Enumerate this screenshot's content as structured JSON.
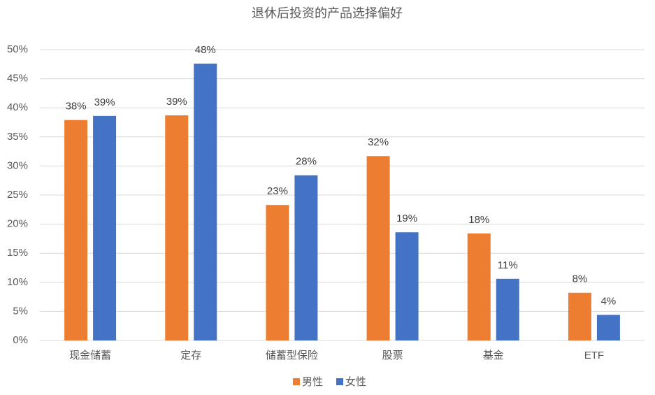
{
  "chart_data": {
    "type": "bar",
    "title": "退休后投资的产品选择偏好",
    "categories": [
      "现金储蓄",
      "定存",
      "储蓄型保险",
      "股票",
      "基金",
      "ETF"
    ],
    "series": [
      {
        "name": "男性",
        "color": "#ed7d31",
        "values": [
          37.9,
          38.7,
          23.3,
          31.7,
          18.4,
          8.2
        ],
        "value_labels": [
          "38%",
          "39%",
          "23%",
          "32%",
          "18%",
          "8%"
        ]
      },
      {
        "name": "女性",
        "color": "#4472c4",
        "values": [
          38.6,
          47.6,
          28.4,
          18.6,
          10.6,
          4.4
        ],
        "value_labels": [
          "39%",
          "48%",
          "28%",
          "19%",
          "11%",
          "4%"
        ]
      }
    ],
    "ylim": [
      0,
      50
    ],
    "yticks": [
      {
        "value": 0,
        "label": "0%"
      },
      {
        "value": 5,
        "label": "5%"
      },
      {
        "value": 10,
        "label": "10%"
      },
      {
        "value": 15,
        "label": "15%"
      },
      {
        "value": 20,
        "label": "20%"
      },
      {
        "value": 25,
        "label": "25%"
      },
      {
        "value": 30,
        "label": "30%"
      },
      {
        "value": 35,
        "label": "35%"
      },
      {
        "value": 40,
        "label": "40%"
      },
      {
        "value": 45,
        "label": "45%"
      },
      {
        "value": 50,
        "label": "50%"
      }
    ],
    "grid": true,
    "legend": "bottom"
  }
}
